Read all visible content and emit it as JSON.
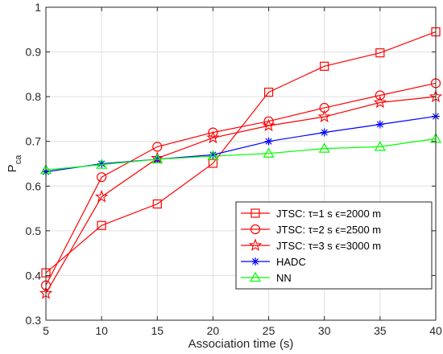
{
  "chart_data": {
    "type": "line",
    "title": "",
    "xlabel": "Association time (s)",
    "ylabel_main": "P",
    "ylabel_sub": "ca",
    "xlim": [
      5,
      40
    ],
    "ylim": [
      0.3,
      1
    ],
    "xticks": [
      5,
      10,
      15,
      20,
      25,
      30,
      35,
      40
    ],
    "yticks": [
      0.3,
      0.4,
      0.5,
      0.6,
      0.7,
      0.8,
      0.9,
      1
    ],
    "grid": true,
    "legend_position": "inside bottom-right",
    "x": [
      5,
      10,
      15,
      20,
      25,
      30,
      35,
      40
    ],
    "series": [
      {
        "name_parts": [
          "JTSC: ",
          "τ",
          "=1 s ",
          "ϵ",
          "=2000 m"
        ],
        "color": "#ff0000",
        "marker": "square",
        "values": [
          0.406,
          0.512,
          0.56,
          0.651,
          0.81,
          0.868,
          0.898,
          0.945
        ]
      },
      {
        "name_parts": [
          "JTSC: ",
          "τ",
          "=2 s ",
          "ϵ",
          "=2500 m"
        ],
        "color": "#ff0000",
        "marker": "circle",
        "values": [
          0.378,
          0.62,
          0.688,
          0.72,
          0.745,
          0.775,
          0.803,
          0.83
        ]
      },
      {
        "name_parts": [
          "JTSC: ",
          "τ",
          "=3 s ",
          "ϵ",
          "=3000 m"
        ],
        "color": "#ff0000",
        "marker": "star",
        "values": [
          0.36,
          0.576,
          0.662,
          0.708,
          0.735,
          0.755,
          0.787,
          0.8
        ]
      },
      {
        "name_parts": [
          "HADC"
        ],
        "color": "#0000ff",
        "marker": "asterisk",
        "values": [
          0.632,
          0.65,
          0.66,
          0.67,
          0.7,
          0.72,
          0.738,
          0.756
        ]
      },
      {
        "name_parts": [
          "NN"
        ],
        "color": "#00ff00",
        "marker": "triangle",
        "values": [
          0.636,
          0.648,
          0.66,
          0.667,
          0.673,
          0.684,
          0.688,
          0.706
        ]
      }
    ]
  }
}
